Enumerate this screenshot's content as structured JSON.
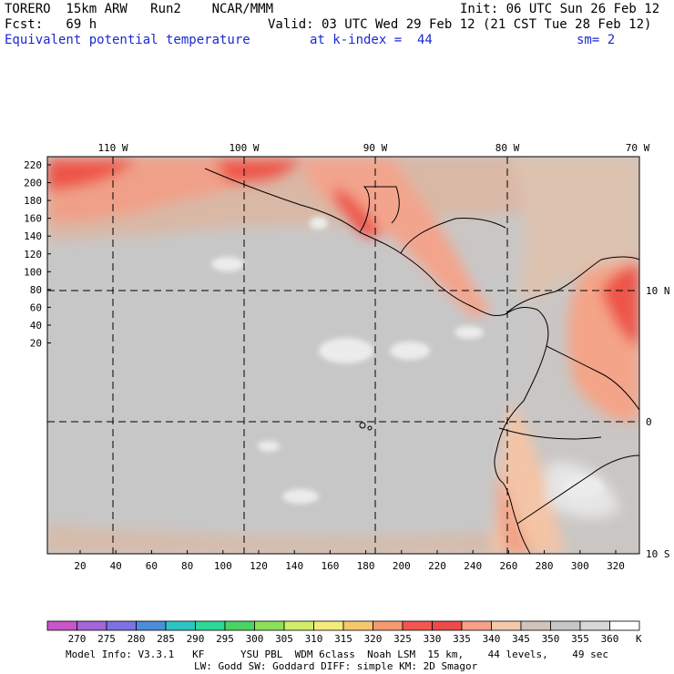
{
  "header": {
    "model": "TORERO  15km ARW   Run2    NCAR/MMM",
    "init": "Init: 06 UTC Sun 26 Feb 12",
    "fcst": "Fcst:   69 h",
    "valid": "Valid: 03 UTC Wed 29 Feb 12 (21 CST Tue 28 Feb 12)",
    "field": "Equivalent potential temperature",
    "level": "at k-index =  44",
    "smooth": "sm= 2"
  },
  "map": {
    "top_lon_labels": [
      "110 W",
      "100 W",
      "90 W",
      "80 W",
      "70 W"
    ],
    "right_lat_labels": [
      "10 N",
      "0",
      "10 S"
    ],
    "y_grid_labels": [
      "220",
      "200",
      "180",
      "160",
      "140",
      "120",
      "100",
      "80",
      "60",
      "40",
      "20"
    ],
    "x_grid_labels": [
      "20",
      "40",
      "60",
      "80",
      "100",
      "120",
      "140",
      "160",
      "180",
      "200",
      "220",
      "240",
      "260",
      "280",
      "300",
      "320"
    ]
  },
  "legend": {
    "unit": "K",
    "values": [
      "270",
      "275",
      "280",
      "285",
      "290",
      "295",
      "300",
      "305",
      "310",
      "315",
      "320",
      "325",
      "330",
      "335",
      "340",
      "345",
      "350",
      "355",
      "360"
    ],
    "colors": [
      "#c856c8",
      "#a266d6",
      "#7c72e4",
      "#4a8ed8",
      "#2ec4c4",
      "#2ed898",
      "#4ad460",
      "#8ae05a",
      "#d2ec6a",
      "#f4ec7a",
      "#f6c86e",
      "#f69a72",
      "#f2564e",
      "#ee4a4a",
      "#f6a088",
      "#f4c8aa",
      "#cfc3bb",
      "#c6c6c6",
      "#d8d8d8",
      "#ffffff"
    ]
  },
  "footer": {
    "line1": "Model Info: V3.3.1   KF      YSU PBL  WDM 6class  Noah LSM  15 km,    44 levels,    49 sec",
    "line2": "LW: Godd SW: Goddard DIFF: simple KM: 2D Smagor"
  }
}
